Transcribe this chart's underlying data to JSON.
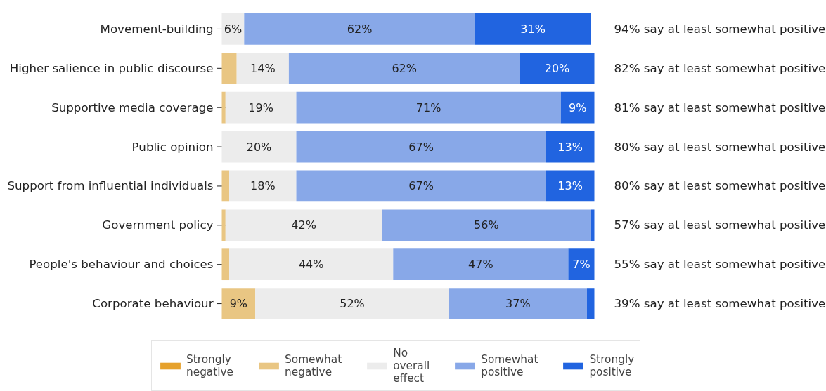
{
  "chart_data": {
    "type": "bar",
    "orientation": "horizontal",
    "stacked": true,
    "tick_labels": "y",
    "grid": false,
    "legend": "bottom",
    "categories": [
      "Movement-building",
      "Higher salience in public discourse",
      "Supportive media coverage",
      "Public opinion",
      "Support from influential individuals",
      "Government policy",
      "People's behaviour and choices",
      "Corporate behaviour"
    ],
    "series": [
      {
        "name": "Strongly negative",
        "color": "#e6a12b",
        "values": [
          0,
          0,
          0,
          0,
          0,
          0,
          0,
          0
        ],
        "value_labels": [
          null,
          null,
          null,
          null,
          null,
          null,
          null,
          null
        ]
      },
      {
        "name": "Somewhat negative",
        "color": "#e9c683",
        "values": [
          0,
          4,
          1,
          0,
          2,
          1,
          2,
          9
        ],
        "value_labels": [
          null,
          null,
          null,
          null,
          null,
          null,
          null,
          "9%"
        ]
      },
      {
        "name": "No overall effect",
        "color": "#ececec",
        "values": [
          6,
          14,
          19,
          20,
          18,
          42,
          44,
          52
        ],
        "value_labels": [
          "6%",
          "14%",
          "19%",
          "20%",
          "18%",
          "42%",
          "44%",
          "52%"
        ]
      },
      {
        "name": "Somewhat positive",
        "color": "#88a8e8",
        "values": [
          62,
          62,
          71,
          67,
          67,
          56,
          47,
          37
        ],
        "value_labels": [
          "62%",
          "62%",
          "71%",
          "67%",
          "67%",
          "56%",
          "47%",
          "37%"
        ]
      },
      {
        "name": "Strongly positive",
        "color": "#2164e0",
        "values": [
          31,
          20,
          9,
          13,
          13,
          1,
          7,
          2
        ],
        "value_labels": [
          "31%",
          "20%",
          "9%",
          "13%",
          "13%",
          null,
          "7%",
          null
        ]
      }
    ],
    "annotations": [
      "94% say at least somewhat positive",
      "82% say at least somewhat positive",
      "81% say at least somewhat positive",
      "80% say at least somewhat positive",
      "80% say at least somewhat positive",
      "57% say at least somewhat positive",
      "55% say at least somewhat positive",
      "39% say at least somewhat positive"
    ]
  }
}
